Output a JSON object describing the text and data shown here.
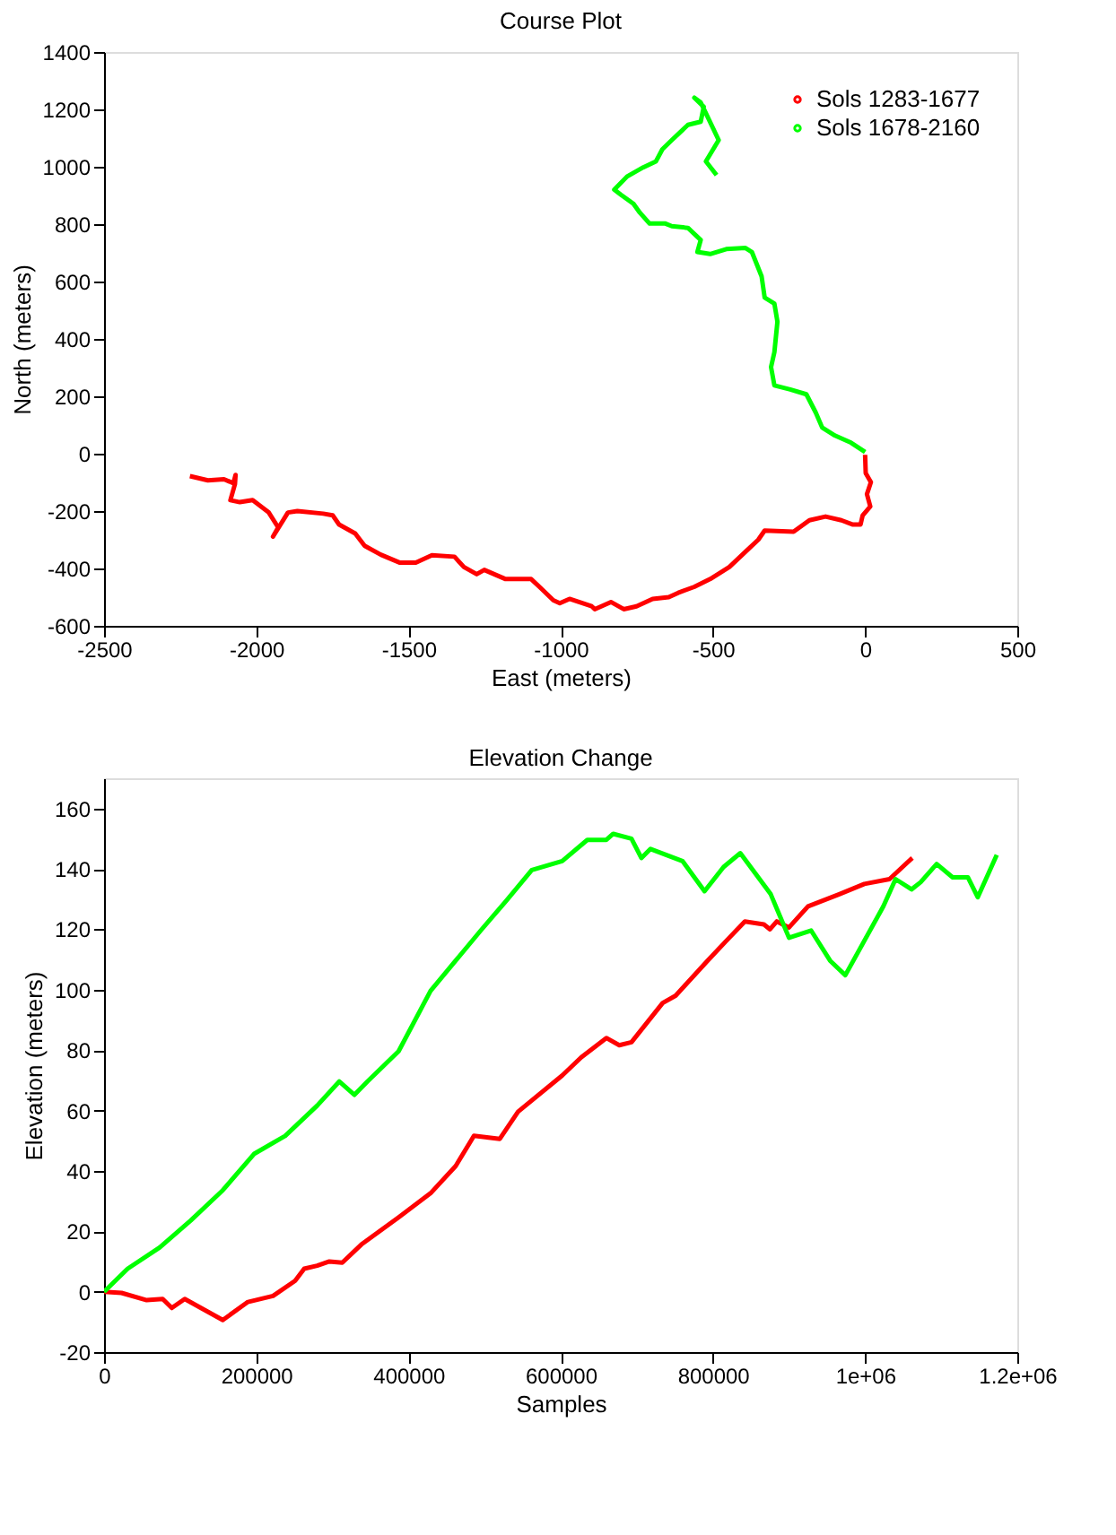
{
  "chart_data": [
    {
      "type": "line",
      "title": "Course Plot",
      "xlabel": "East (meters)",
      "ylabel": "North (meters)",
      "xlim": [
        -2500,
        500
      ],
      "xticks": [
        -2500,
        -2000,
        -1500,
        -1000,
        -500,
        0,
        500
      ],
      "ylim": [
        -600,
        1400
      ],
      "yticks": [
        -600,
        -400,
        -200,
        0,
        200,
        400,
        600,
        800,
        1000,
        1200,
        1400
      ],
      "grid": false,
      "legend": "top right",
      "series": [
        {
          "name": "Sols 1283-1677",
          "color": "#ff0000",
          "x": [
            -2218,
            -2159,
            -2106,
            -2075,
            -2068,
            -2070,
            -2085,
            -2054,
            -2012,
            -1959,
            -1928,
            -1945,
            -1896,
            -1865,
            -1780,
            -1749,
            -1728,
            -1675,
            -1644,
            -1591,
            -1528,
            -1476,
            -1423,
            -1349,
            -1318,
            -1276,
            -1251,
            -1181,
            -1097,
            -1066,
            -1024,
            -1003,
            -971,
            -898,
            -888,
            -835,
            -793,
            -751,
            -698,
            -645,
            -614,
            -561,
            -509,
            -446,
            -393,
            -351,
            -330,
            -235,
            -183,
            -130,
            -78,
            -40,
            -15,
            -8,
            17,
            6,
            19,
            2,
            0
          ],
          "values": [
            -78,
            -93,
            -89,
            -103,
            -74,
            -106,
            -162,
            -169,
            -162,
            -205,
            -257,
            -289,
            -205,
            -200,
            -209,
            -215,
            -247,
            -278,
            -321,
            -352,
            -380,
            -380,
            -354,
            -359,
            -395,
            -420,
            -405,
            -437,
            -437,
            -468,
            -511,
            -521,
            -506,
            -532,
            -542,
            -517,
            -542,
            -532,
            -506,
            -500,
            -485,
            -464,
            -437,
            -395,
            -342,
            -300,
            -268,
            -272,
            -232,
            -219,
            -232,
            -247,
            -247,
            -215,
            -184,
            -141,
            -99,
            -68,
            -4
          ]
        },
        {
          "name": "Sols 1678-2160",
          "color": "#00ff00",
          "x": [
            0,
            -46,
            -99,
            -141,
            -162,
            -193,
            -246,
            -298,
            -309,
            -298,
            -288,
            -298,
            -330,
            -340,
            -372,
            -393,
            -456,
            -509,
            -551,
            -540,
            -582,
            -635,
            -656,
            -708,
            -740,
            -761,
            -803,
            -824,
            -782,
            -729,
            -687,
            -666,
            -635,
            -582,
            -540,
            -530,
            -561,
            -540,
            -519,
            -481,
            -523,
            -488
          ],
          "values": [
            6,
            38,
            63,
            91,
            143,
            207,
            224,
            238,
            302,
            354,
            460,
            523,
            544,
            618,
            703,
            717,
            713,
            696,
            703,
            745,
            787,
            793,
            802,
            802,
            840,
            871,
            903,
            920,
            966,
            998,
            1019,
            1061,
            1093,
            1146,
            1157,
            1209,
            1241,
            1224,
            1178,
            1093,
            1019,
            971
          ]
        }
      ]
    },
    {
      "type": "line",
      "title": "Elevation Change",
      "xlabel": "Samples",
      "ylabel": "Elevation (meters)",
      "xlim": [
        0,
        1200000
      ],
      "xticks": [
        0,
        200000,
        400000,
        600000,
        800000,
        {
          "value": 1000000,
          "label": "1e+06"
        },
        {
          "value": 1200000,
          "label": "1.2e+06"
        }
      ],
      "ylim": [
        -20,
        170
      ],
      "yticks": [
        -20,
        0,
        20,
        40,
        60,
        80,
        100,
        120,
        140,
        160
      ],
      "grid": false,
      "legend": "top right",
      "series": [
        {
          "name": "Sols 1283-1677",
          "color": "#ff0000",
          "x": [
            0,
            23000,
            56000,
            77000,
            89000,
            106000,
            156000,
            189000,
            222000,
            251000,
            263000,
            280000,
            296000,
            313000,
            338000,
            387000,
            429000,
            462000,
            486000,
            520000,
            544000,
            602000,
            627000,
            660000,
            677000,
            693000,
            734000,
            751000,
            793000,
            817000,
            842000,
            867000,
            875000,
            884000,
            900000,
            925000,
            966000,
            999000,
            1032000,
            1062000
          ],
          "values": [
            0,
            -0.4,
            -2.8,
            -2.4,
            -5.4,
            -2.4,
            -9.4,
            -3.4,
            -1.4,
            3.6,
            7.6,
            8.6,
            10,
            9.6,
            15.6,
            24.6,
            32.6,
            41.6,
            51.6,
            50.6,
            59.6,
            71.6,
            77.6,
            84,
            81.6,
            82.6,
            95.6,
            98,
            109.6,
            116,
            122.6,
            121.6,
            120,
            122.6,
            120.6,
            127.6,
            131.6,
            135,
            136.6,
            143.6
          ]
        },
        {
          "name": "Sols 1678-2160",
          "color": "#00ff00",
          "x": [
            0,
            31000,
            73000,
            114000,
            156000,
            197000,
            238000,
            280000,
            309000,
            329000,
            346000,
            387000,
            429000,
            462000,
            495000,
            529000,
            562000,
            602000,
            635000,
            660000,
            669000,
            693000,
            706000,
            718000,
            760000,
            789000,
            814000,
            836000,
            876000,
            900000,
            929000,
            954000,
            974000,
            1024000,
            1040000,
            1061000,
            1073000,
            1094000,
            1115000,
            1135000,
            1148000,
            1173000
          ],
          "values": [
            0,
            7.6,
            14.6,
            23.6,
            33.6,
            45.6,
            51.6,
            61.6,
            69.6,
            65.2,
            69.6,
            79.6,
            99.6,
            109.6,
            119.6,
            129.6,
            139.6,
            142.6,
            149.6,
            149.6,
            151.6,
            150,
            143.6,
            146.6,
            142.6,
            132.6,
            140.6,
            145.2,
            131.6,
            117.2,
            119.6,
            109.6,
            104.8,
            127.6,
            136.6,
            133.2,
            135.6,
            141.6,
            137.2,
            137.2,
            130.6,
            144.6
          ]
        }
      ]
    }
  ]
}
